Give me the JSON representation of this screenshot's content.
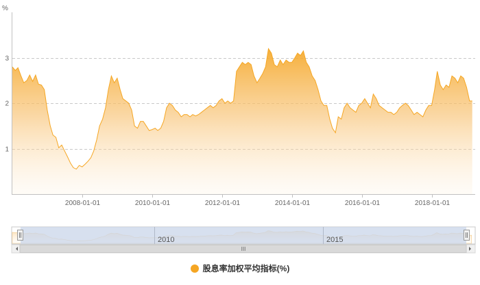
{
  "chart_data": {
    "type": "area",
    "title": "",
    "ylabel": "",
    "y_unit": "%",
    "ylim": [
      0,
      4
    ],
    "y_ticks": [
      1,
      2,
      3
    ],
    "x_range": [
      "2006-01-01",
      "2019-04-01"
    ],
    "x_ticks": [
      "2008-01-01",
      "2010-01-01",
      "2012-01-01",
      "2014-01-01",
      "2016-01-01",
      "2018-01-01"
    ],
    "grid": "horizontal dashed",
    "legend_position": "bottom",
    "series": [
      {
        "name": "股息率加权平均指标(%)",
        "color": "#f5a623",
        "points": [
          [
            "2006-01-01",
            2.8
          ],
          [
            "2006-02-01",
            2.72
          ],
          [
            "2006-03-01",
            2.78
          ],
          [
            "2006-04-01",
            2.6
          ],
          [
            "2006-05-01",
            2.45
          ],
          [
            "2006-06-01",
            2.5
          ],
          [
            "2006-07-01",
            2.62
          ],
          [
            "2006-08-01",
            2.48
          ],
          [
            "2006-09-01",
            2.62
          ],
          [
            "2006-10-01",
            2.42
          ],
          [
            "2006-11-01",
            2.4
          ],
          [
            "2006-12-01",
            2.3
          ],
          [
            "2007-01-01",
            1.85
          ],
          [
            "2007-02-01",
            1.5
          ],
          [
            "2007-03-01",
            1.3
          ],
          [
            "2007-04-01",
            1.25
          ],
          [
            "2007-05-01",
            1.02
          ],
          [
            "2007-06-01",
            1.08
          ],
          [
            "2007-07-01",
            0.95
          ],
          [
            "2007-08-01",
            0.82
          ],
          [
            "2007-09-01",
            0.68
          ],
          [
            "2007-10-01",
            0.58
          ],
          [
            "2007-11-01",
            0.55
          ],
          [
            "2007-12-01",
            0.63
          ],
          [
            "2008-01-01",
            0.6
          ],
          [
            "2008-02-01",
            0.66
          ],
          [
            "2008-03-01",
            0.72
          ],
          [
            "2008-04-01",
            0.8
          ],
          [
            "2008-05-01",
            0.95
          ],
          [
            "2008-06-01",
            1.2
          ],
          [
            "2008-07-01",
            1.5
          ],
          [
            "2008-08-01",
            1.65
          ],
          [
            "2008-09-01",
            1.9
          ],
          [
            "2008-10-01",
            2.3
          ],
          [
            "2008-11-01",
            2.6
          ],
          [
            "2008-12-01",
            2.45
          ],
          [
            "2009-01-01",
            2.55
          ],
          [
            "2009-02-01",
            2.3
          ],
          [
            "2009-03-01",
            2.1
          ],
          [
            "2009-04-01",
            2.05
          ],
          [
            "2009-05-01",
            2.0
          ],
          [
            "2009-06-01",
            1.85
          ],
          [
            "2009-07-01",
            1.5
          ],
          [
            "2009-08-01",
            1.45
          ],
          [
            "2009-09-01",
            1.6
          ],
          [
            "2009-10-01",
            1.6
          ],
          [
            "2009-11-01",
            1.5
          ],
          [
            "2009-12-01",
            1.4
          ],
          [
            "2010-01-01",
            1.42
          ],
          [
            "2010-02-01",
            1.45
          ],
          [
            "2010-03-01",
            1.4
          ],
          [
            "2010-04-01",
            1.45
          ],
          [
            "2010-05-01",
            1.6
          ],
          [
            "2010-06-01",
            1.9
          ],
          [
            "2010-07-01",
            2.0
          ],
          [
            "2010-08-01",
            1.95
          ],
          [
            "2010-09-01",
            1.85
          ],
          [
            "2010-10-01",
            1.8
          ],
          [
            "2010-11-01",
            1.7
          ],
          [
            "2010-12-01",
            1.75
          ],
          [
            "2011-01-01",
            1.75
          ],
          [
            "2011-02-01",
            1.7
          ],
          [
            "2011-03-01",
            1.75
          ],
          [
            "2011-04-01",
            1.72
          ],
          [
            "2011-05-01",
            1.75
          ],
          [
            "2011-06-01",
            1.8
          ],
          [
            "2011-07-01",
            1.85
          ],
          [
            "2011-08-01",
            1.9
          ],
          [
            "2011-09-01",
            1.95
          ],
          [
            "2011-10-01",
            1.9
          ],
          [
            "2011-11-01",
            1.95
          ],
          [
            "2011-12-01",
            2.05
          ],
          [
            "2012-01-01",
            2.1
          ],
          [
            "2012-02-01",
            2.0
          ],
          [
            "2012-03-01",
            2.05
          ],
          [
            "2012-04-01",
            2.0
          ],
          [
            "2012-05-01",
            2.05
          ],
          [
            "2012-06-01",
            2.7
          ],
          [
            "2012-07-01",
            2.8
          ],
          [
            "2012-08-01",
            2.9
          ],
          [
            "2012-09-01",
            2.85
          ],
          [
            "2012-10-01",
            2.9
          ],
          [
            "2012-11-01",
            2.85
          ],
          [
            "2012-12-01",
            2.6
          ],
          [
            "2013-01-01",
            2.45
          ],
          [
            "2013-02-01",
            2.55
          ],
          [
            "2013-03-01",
            2.65
          ],
          [
            "2013-04-01",
            2.8
          ],
          [
            "2013-05-01",
            3.2
          ],
          [
            "2013-06-01",
            3.1
          ],
          [
            "2013-07-01",
            2.85
          ],
          [
            "2013-08-01",
            2.8
          ],
          [
            "2013-09-01",
            2.95
          ],
          [
            "2013-10-01",
            2.85
          ],
          [
            "2013-11-01",
            2.95
          ],
          [
            "2013-12-01",
            2.9
          ],
          [
            "2014-01-01",
            2.9
          ],
          [
            "2014-02-01",
            3.0
          ],
          [
            "2014-03-01",
            3.1
          ],
          [
            "2014-04-01",
            3.05
          ],
          [
            "2014-05-01",
            3.15
          ],
          [
            "2014-06-01",
            2.9
          ],
          [
            "2014-07-01",
            2.8
          ],
          [
            "2014-08-01",
            2.6
          ],
          [
            "2014-09-01",
            2.5
          ],
          [
            "2014-10-01",
            2.3
          ],
          [
            "2014-11-01",
            2.05
          ],
          [
            "2014-12-01",
            1.95
          ],
          [
            "2015-01-01",
            1.95
          ],
          [
            "2015-02-01",
            1.65
          ],
          [
            "2015-03-01",
            1.45
          ],
          [
            "2015-04-01",
            1.35
          ],
          [
            "2015-05-01",
            1.7
          ],
          [
            "2015-06-01",
            1.65
          ],
          [
            "2015-07-01",
            1.9
          ],
          [
            "2015-08-01",
            2.0
          ],
          [
            "2015-09-01",
            1.9
          ],
          [
            "2015-10-01",
            1.85
          ],
          [
            "2015-11-01",
            1.8
          ],
          [
            "2015-12-01",
            1.95
          ],
          [
            "2016-01-01",
            2.0
          ],
          [
            "2016-02-01",
            2.1
          ],
          [
            "2016-03-01",
            2.0
          ],
          [
            "2016-04-01",
            1.9
          ],
          [
            "2016-05-01",
            2.2
          ],
          [
            "2016-06-01",
            2.1
          ],
          [
            "2016-07-01",
            1.95
          ],
          [
            "2016-08-01",
            1.9
          ],
          [
            "2016-09-01",
            1.85
          ],
          [
            "2016-10-01",
            1.8
          ],
          [
            "2016-11-01",
            1.8
          ],
          [
            "2016-12-01",
            1.75
          ],
          [
            "2017-01-01",
            1.8
          ],
          [
            "2017-02-01",
            1.9
          ],
          [
            "2017-03-01",
            1.95
          ],
          [
            "2017-04-01",
            2.0
          ],
          [
            "2017-05-01",
            1.95
          ],
          [
            "2017-06-01",
            1.85
          ],
          [
            "2017-07-01",
            1.75
          ],
          [
            "2017-08-01",
            1.8
          ],
          [
            "2017-09-01",
            1.75
          ],
          [
            "2017-10-01",
            1.7
          ],
          [
            "2017-11-01",
            1.85
          ],
          [
            "2017-12-01",
            1.95
          ],
          [
            "2018-01-01",
            1.95
          ],
          [
            "2018-02-01",
            2.3
          ],
          [
            "2018-03-01",
            2.7
          ],
          [
            "2018-04-01",
            2.4
          ],
          [
            "2018-05-01",
            2.3
          ],
          [
            "2018-06-01",
            2.4
          ],
          [
            "2018-07-01",
            2.35
          ],
          [
            "2018-08-01",
            2.6
          ],
          [
            "2018-09-01",
            2.55
          ],
          [
            "2018-10-01",
            2.45
          ],
          [
            "2018-11-01",
            2.6
          ],
          [
            "2018-12-01",
            2.55
          ],
          [
            "2019-01-01",
            2.35
          ],
          [
            "2019-02-01",
            2.05
          ],
          [
            "2019-03-01",
            2.05
          ]
        ]
      }
    ]
  },
  "navigator": {
    "labels": [
      "2010",
      "2015"
    ],
    "scrollbar_grip": "III"
  },
  "legend": {
    "label": "股息率加权平均指标(%)"
  }
}
